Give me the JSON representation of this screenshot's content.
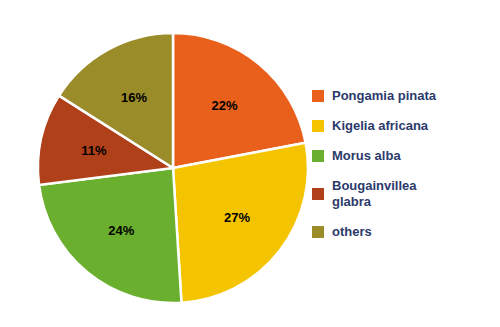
{
  "chart_data": {
    "type": "pie",
    "categories": [
      "Pongamia pinata",
      "Kigelia africana",
      "Morus alba",
      "Bougainvillea\nglabra",
      "others"
    ],
    "values": [
      22,
      27,
      24,
      11,
      16
    ],
    "value_labels": [
      "22%",
      "27%",
      "24%",
      "11%",
      "16%"
    ],
    "colors": [
      "#E8601C",
      "#F5C400",
      "#6AAF2E",
      "#B0401A",
      "#9B8C2A"
    ],
    "data_labels": true,
    "legend": "right"
  }
}
